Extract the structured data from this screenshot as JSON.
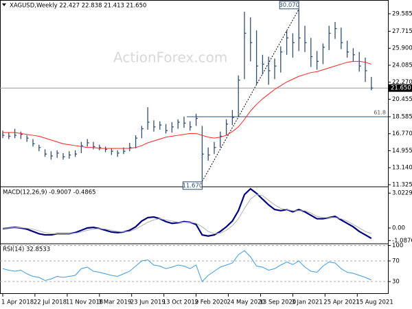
{
  "chart_data": [
    {
      "type": "ohlc",
      "title": "XAGUSD,Weekly  22.427 22.838 21.413 21.650",
      "watermark": "ActionForex.com",
      "color": "#2f4d6e",
      "xticks": [
        {
          "value": 0,
          "label": "1 Apr 2018"
        },
        {
          "value": 5.33,
          "label": "22 Jul 2018"
        },
        {
          "value": 10.67,
          "label": "11 Nov 2018"
        },
        {
          "value": 16,
          "label": "3 Mar 2019"
        },
        {
          "value": 21.33,
          "label": "23 Jun 2019"
        },
        {
          "value": 26.67,
          "label": "13 Oct 2019"
        },
        {
          "value": 32,
          "label": "2 Feb 2020"
        },
        {
          "value": 37.33,
          "label": "24 May 2020"
        },
        {
          "value": 42.67,
          "label": "13 Sep 2020"
        },
        {
          "value": 48,
          "label": "3 Jan 2021"
        },
        {
          "value": 53.33,
          "label": "25 Apr 2021"
        },
        {
          "value": 58.67,
          "label": "15 Aug 2021"
        }
      ],
      "ylim": [
        11.105,
        31.05
      ],
      "yticks": [
        29.585,
        27.715,
        {
          "value": 25.9,
          "label": "25.900"
        },
        24.085,
        {
          "value": 22.27,
          "label": "22.270"
        },
        20.455,
        18.585,
        {
          "value": 16.77,
          "label": "16.770"
        },
        14.955,
        {
          "value": 13.14,
          "label": "13.140"
        },
        11.325
      ],
      "high": [
        17.1,
        16.9,
        17.3,
        17.0,
        16.6,
        16.2,
        15.6,
        15.1,
        14.9,
        15.0,
        14.7,
        14.9,
        15.0,
        15.9,
        16.2,
        15.9,
        15.6,
        15.4,
        15.2,
        15.0,
        15.3,
        15.8,
        16.6,
        17.6,
        19.6,
        18.2,
        18.1,
        17.8,
        18.0,
        18.3,
        18.6,
        18.1,
        18.9,
        17.6,
        15.3,
        15.9,
        17.0,
        18.3,
        19.3,
        23.0,
        29.8,
        29.2,
        27.8,
        25.2,
        25.0,
        24.8,
        26.1,
        27.8,
        27.5,
        30.07,
        28.3,
        27.0,
        25.6,
        26.4,
        28.3,
        28.7,
        28.1,
        26.7,
        25.9,
        25.5,
        24.9,
        22.84
      ],
      "low": [
        16.3,
        16.2,
        16.3,
        16.2,
        15.9,
        15.4,
        14.9,
        14.3,
        14.0,
        14.2,
        14.0,
        14.1,
        14.3,
        14.7,
        15.4,
        15.1,
        15.0,
        14.8,
        14.5,
        14.3,
        14.6,
        14.9,
        15.2,
        16.3,
        17.2,
        17.0,
        17.2,
        16.8,
        16.9,
        17.3,
        17.4,
        17.1,
        17.6,
        11.67,
        13.9,
        14.6,
        15.3,
        16.6,
        17.7,
        18.6,
        22.6,
        24.5,
        22.0,
        23.1,
        22.0,
        22.6,
        23.3,
        25.2,
        24.9,
        25.6,
        25.5,
        23.9,
        23.6,
        24.2,
        25.7,
        26.9,
        25.8,
        24.9,
        24.5,
        23.4,
        22.3,
        21.41
      ],
      "close": [
        16.6,
        16.5,
        16.6,
        16.7,
        16.3,
        15.7,
        15.3,
        14.6,
        14.4,
        14.7,
        14.3,
        14.5,
        14.6,
        15.5,
        15.8,
        15.4,
        15.3,
        15.1,
        14.9,
        14.7,
        14.9,
        15.3,
        16.3,
        17.3,
        18.0,
        17.5,
        17.7,
        17.1,
        17.5,
        18.0,
        17.9,
        17.5,
        18.4,
        14.6,
        14.5,
        15.3,
        16.5,
        17.8,
        18.5,
        22.5,
        27.5,
        26.5,
        24.0,
        24.2,
        23.5,
        24.0,
        25.5,
        27.0,
        26.5,
        27.0,
        26.5,
        25.0,
        24.5,
        26.0,
        27.5,
        28.0,
        26.5,
        25.5,
        25.2,
        24.0,
        23.5,
        21.65
      ],
      "moving_average": {
        "color": "#ff2020",
        "values": [
          16.9,
          16.9,
          16.9,
          16.8,
          16.7,
          16.6,
          16.5,
          16.3,
          16.1,
          15.9,
          15.7,
          15.6,
          15.5,
          15.4,
          15.3,
          15.3,
          15.2,
          15.2,
          15.2,
          15.2,
          15.2,
          15.2,
          15.3,
          15.5,
          15.8,
          16.0,
          16.2,
          16.4,
          16.5,
          16.6,
          16.7,
          16.8,
          16.8,
          16.6,
          16.4,
          16.3,
          16.4,
          16.6,
          17.0,
          17.5,
          18.3,
          19.2,
          19.9,
          20.5,
          21.0,
          21.5,
          21.9,
          22.3,
          22.6,
          22.9,
          23.1,
          23.3,
          23.4,
          23.6,
          23.8,
          24.0,
          24.2,
          24.4,
          24.5,
          24.5,
          24.4,
          24.2
        ]
      },
      "low_marker": {
        "index": 33,
        "value": 11.67,
        "label": "11.670"
      },
      "high_marker": {
        "index": 49,
        "value": 30.07,
        "label": "30.070"
      },
      "fib_level": {
        "from_index": 35,
        "value": 18.585,
        "label": "61.8"
      },
      "last_price": {
        "value": 21.65,
        "label": "21.650"
      }
    },
    {
      "type": "line",
      "title": "MACD(12,26,9) -0.9007 -0.4865",
      "ylim": [
        -1.31,
        3.514
      ],
      "yticks": [
        3.0229,
        {
          "value": 0,
          "label": "0.00"
        },
        -1.0876
      ],
      "series": [
        {
          "color": "#00007f",
          "width": 2.2,
          "values": [
            -0.05,
            0.0,
            0.05,
            0.0,
            -0.1,
            -0.3,
            -0.5,
            -0.6,
            -0.6,
            -0.5,
            -0.5,
            -0.5,
            -0.4,
            -0.2,
            0.0,
            0.05,
            -0.05,
            -0.2,
            -0.35,
            -0.4,
            -0.35,
            -0.2,
            0.1,
            0.6,
            0.9,
            0.95,
            0.8,
            0.55,
            0.4,
            0.45,
            0.55,
            0.5,
            0.3,
            -0.6,
            -0.7,
            -0.6,
            -0.3,
            0.1,
            0.6,
            1.5,
            2.9,
            3.4,
            3.0,
            2.5,
            2.0,
            1.6,
            1.5,
            1.6,
            1.4,
            1.6,
            1.4,
            1.1,
            0.8,
            0.8,
            0.9,
            1.0,
            0.7,
            0.4,
            0.1,
            -0.3,
            -0.6,
            -0.9007
          ]
        },
        {
          "color": "#b0b0b0",
          "width": 1,
          "values": [
            -0.02,
            0.0,
            0.02,
            0.02,
            -0.02,
            -0.1,
            -0.25,
            -0.4,
            -0.5,
            -0.5,
            -0.5,
            -0.5,
            -0.45,
            -0.35,
            -0.2,
            -0.1,
            -0.05,
            -0.1,
            -0.2,
            -0.3,
            -0.35,
            -0.3,
            -0.1,
            0.2,
            0.5,
            0.7,
            0.8,
            0.7,
            0.6,
            0.5,
            0.5,
            0.5,
            0.4,
            0.1,
            -0.3,
            -0.5,
            -0.45,
            -0.2,
            0.2,
            0.8,
            1.7,
            2.5,
            2.9,
            2.8,
            2.4,
            2.0,
            1.7,
            1.6,
            1.5,
            1.5,
            1.5,
            1.3,
            1.0,
            0.9,
            0.9,
            0.9,
            0.8,
            0.6,
            0.3,
            0.0,
            -0.3,
            -0.4865
          ]
        }
      ]
    },
    {
      "type": "line",
      "title": "RSI(14) 32.8533",
      "ylim": [
        6,
        102
      ],
      "yticks": [
        100,
        70,
        30
      ],
      "series": [
        {
          "color": "#3a9ce0",
          "width": 1,
          "values": [
            55,
            52,
            50,
            52,
            45,
            40,
            38,
            32,
            35,
            40,
            38,
            40,
            42,
            55,
            58,
            50,
            48,
            45,
            42,
            40,
            45,
            50,
            60,
            70,
            72,
            62,
            60,
            55,
            58,
            62,
            60,
            55,
            62,
            30,
            42,
            50,
            58,
            62,
            66,
            82,
            90,
            78,
            60,
            58,
            52,
            55,
            62,
            68,
            63,
            70,
            58,
            50,
            48,
            60,
            68,
            66,
            55,
            48,
            46,
            42,
            38,
            32.8533
          ]
        }
      ]
    }
  ]
}
